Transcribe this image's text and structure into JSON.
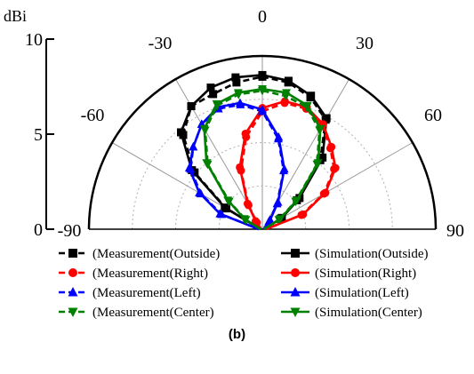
{
  "chart_data": {
    "type": "polar",
    "unit_label": "dBi",
    "r_ticks": [
      0,
      5,
      10
    ],
    "r_range": [
      0,
      10
    ],
    "angle_ticks": [
      -90,
      -60,
      -30,
      0,
      30,
      60,
      90
    ],
    "angle_range": [
      -90,
      90
    ],
    "grid": true,
    "legend_position": "bottom",
    "caption": "(b)",
    "series": [
      {
        "name": "(Measurement(Outside)",
        "color": "#000000",
        "line": "dash",
        "marker": "square",
        "angles": [
          -90,
          -60,
          -50,
          -40,
          -30,
          -20,
          -10,
          0,
          10,
          20,
          30,
          40,
          50,
          60,
          90
        ],
        "values": [
          0.1,
          2.4,
          5.1,
          7.1,
          8.2,
          8.3,
          8.6,
          8.8,
          8.6,
          8.1,
          7.3,
          5.2,
          2.6,
          1.2,
          0.1
        ]
      },
      {
        "name": "(Simulation(Outside)",
        "color": "#000000",
        "line": "solid",
        "marker": "square",
        "angles": [
          -90,
          -60,
          -50,
          -40,
          -30,
          -20,
          -10,
          0,
          10,
          20,
          30,
          40,
          50,
          60,
          90
        ],
        "values": [
          0.1,
          2.5,
          5.3,
          7.3,
          8.2,
          8.7,
          8.9,
          8.9,
          8.7,
          8.2,
          7.4,
          5.4,
          2.8,
          1.3,
          0.1
        ]
      },
      {
        "name": "(Measurement(Right)",
        "color": "#ff0000",
        "line": "dash",
        "marker": "circle",
        "angles": [
          -90,
          -40,
          -30,
          -20,
          -10,
          0,
          10,
          20,
          30,
          40,
          50,
          60,
          70,
          90
        ],
        "values": [
          0.1,
          0.5,
          1.6,
          3.6,
          5.4,
          6.8,
          7.4,
          7.4,
          6.9,
          6.1,
          5.4,
          4.1,
          2.4,
          0.2
        ]
      },
      {
        "name": "(Simulation(Right)",
        "color": "#ff0000",
        "line": "solid",
        "marker": "circle",
        "angles": [
          -90,
          -40,
          -30,
          -20,
          -10,
          0,
          10,
          20,
          30,
          40,
          50,
          60,
          70,
          90
        ],
        "values": [
          0.1,
          0.6,
          1.7,
          3.8,
          5.6,
          7.0,
          7.5,
          7.5,
          7.0,
          6.2,
          5.5,
          4.2,
          2.5,
          0.2
        ]
      },
      {
        "name": "(Measurement(Left)",
        "color": "#0000ff",
        "line": "dash",
        "marker": "triangle-up",
        "angles": [
          -90,
          -70,
          -60,
          -50,
          -40,
          -30,
          -20,
          -10,
          0,
          10,
          20,
          30,
          40,
          90
        ],
        "values": [
          0.2,
          2.5,
          4.1,
          5.4,
          6.2,
          7.0,
          7.4,
          7.3,
          6.8,
          5.3,
          3.6,
          1.7,
          0.6,
          0.1
        ]
      },
      {
        "name": "(Simulation(Left)",
        "color": "#0000ff",
        "line": "solid",
        "marker": "triangle-up",
        "angles": [
          -90,
          -70,
          -60,
          -50,
          -40,
          -30,
          -20,
          -10,
          0,
          10,
          20,
          30,
          40,
          90
        ],
        "values": [
          0.2,
          2.6,
          4.2,
          5.5,
          6.2,
          7.0,
          7.5,
          7.4,
          6.9,
          5.4,
          3.7,
          1.8,
          0.7,
          0.1
        ]
      },
      {
        "name": "(Measurement(Center)",
        "color": "#008000",
        "line": "dash",
        "marker": "triangle-down",
        "angles": [
          -90,
          -60,
          -50,
          -40,
          -30,
          -20,
          -10,
          0,
          10,
          20,
          30,
          40,
          50,
          60,
          90
        ],
        "values": [
          0.1,
          1.1,
          2.5,
          4.9,
          6.6,
          7.6,
          7.9,
          8.0,
          7.8,
          7.5,
          6.6,
          4.9,
          2.5,
          1.1,
          0.1
        ]
      },
      {
        "name": "(Simulation(Center)",
        "color": "#008000",
        "line": "solid",
        "marker": "triangle-down",
        "angles": [
          -90,
          -60,
          -50,
          -40,
          -30,
          -20,
          -10,
          0,
          10,
          20,
          30,
          40,
          50,
          60,
          90
        ],
        "values": [
          0.1,
          1.2,
          2.6,
          5.0,
          6.7,
          7.7,
          8.0,
          8.1,
          8.0,
          7.6,
          6.7,
          5.0,
          2.6,
          1.2,
          0.1
        ]
      }
    ]
  }
}
